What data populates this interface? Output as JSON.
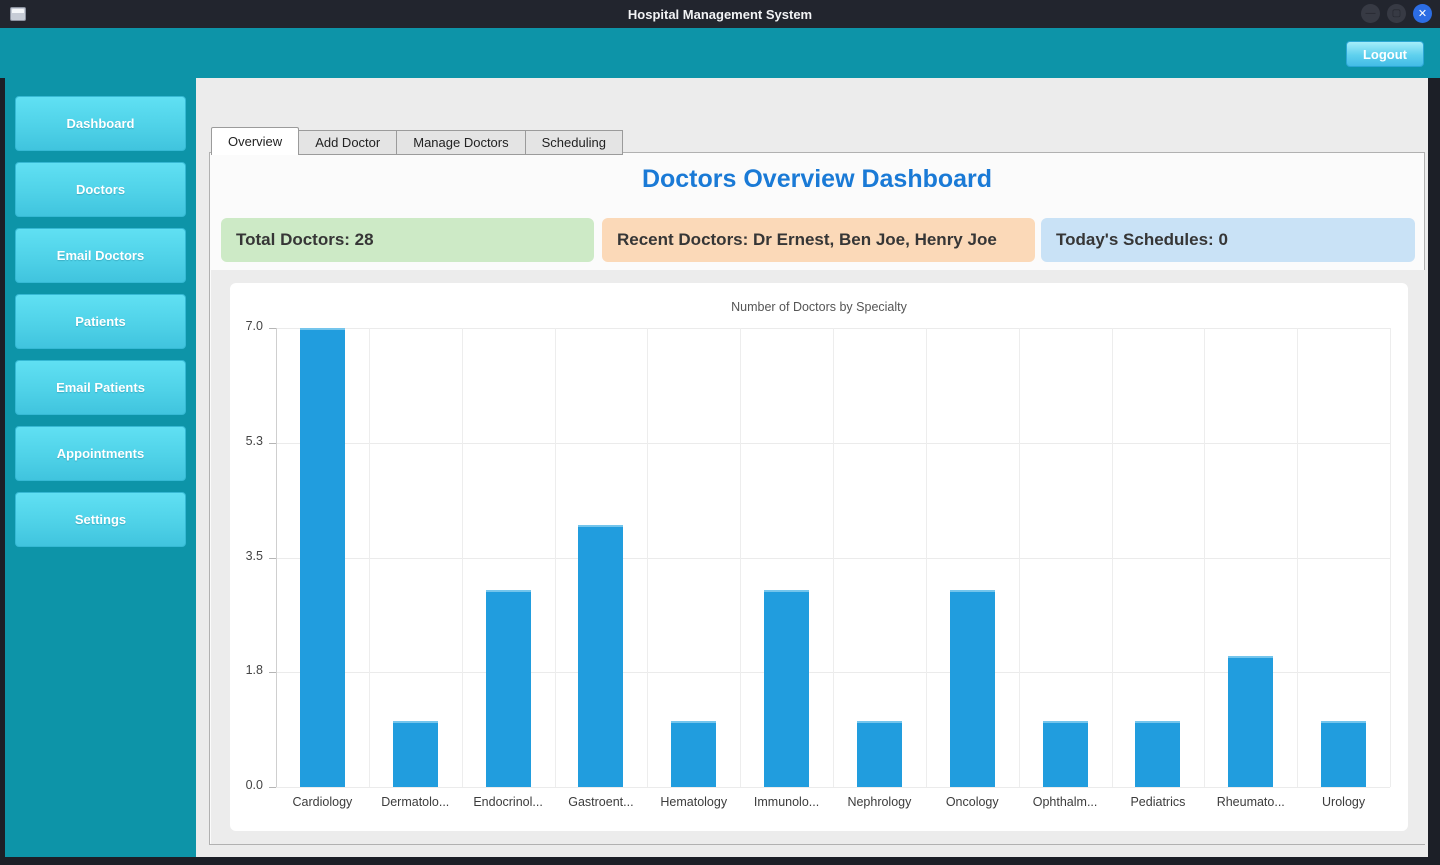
{
  "window": {
    "title": "Hospital Management System"
  },
  "titlebar": {
    "minimize": "",
    "maximize": "",
    "close": "✕"
  },
  "header": {
    "logout_label": "Logout"
  },
  "sidebar": {
    "items": [
      "Dashboard",
      "Doctors",
      "Email Doctors",
      "Patients",
      "Email Patients",
      "Appointments",
      "Settings"
    ]
  },
  "tabs": [
    "Overview",
    "Add Doctor",
    "Manage Doctors",
    "Scheduling"
  ],
  "main": {
    "heading": "Doctors Overview Dashboard",
    "cards": [
      {
        "text": "Total Doctors: 28",
        "bg": "#cdeac6"
      },
      {
        "text": "Recent Doctors: Dr Ernest, Ben Joe, Henry Joe",
        "bg": "#fbd9b8"
      },
      {
        "text": "Today's Schedules: 0",
        "bg": "#c9e2f6"
      }
    ]
  },
  "chart_data": {
    "type": "bar",
    "title": "Number of Doctors by Specialty",
    "categories": [
      "Cardiology",
      "Dermatolo...",
      "Endocrinol...",
      "Gastroent...",
      "Hematology",
      "Immunolo...",
      "Nephrology",
      "Oncology",
      "Ophthalm...",
      "Pediatrics",
      "Rheumato...",
      "Urology"
    ],
    "values": [
      7,
      1,
      3,
      4,
      1,
      3,
      1,
      3,
      1,
      1,
      2,
      1
    ],
    "xlabel": "",
    "ylabel": "",
    "ylim": [
      0,
      7
    ],
    "yticks": [
      {
        "value": 0,
        "label": "0.0"
      },
      {
        "value": 1.75,
        "label": "1.8"
      },
      {
        "value": 3.5,
        "label": "3.5"
      },
      {
        "value": 5.25,
        "label": "5.3"
      },
      {
        "value": 7,
        "label": "7.0"
      }
    ],
    "grid": true,
    "legend": false,
    "bar_color": "#219dde"
  },
  "colors": {
    "teal_header": "#0d94a8",
    "sidebar_button_top": "#60e0f3",
    "sidebar_button_bottom": "#40c4de",
    "heading_blue": "#1a7ad6",
    "bar_blue": "#219dde",
    "titlebar_dark": "#22252e",
    "close_button_blue": "#2c6de4",
    "content_gray": "#ececec"
  }
}
